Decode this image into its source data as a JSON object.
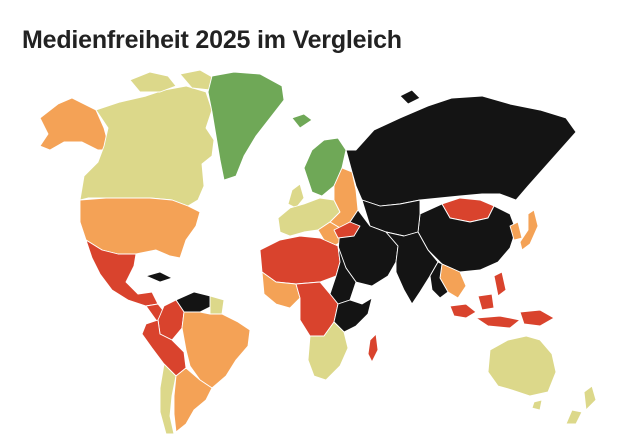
{
  "title": "Medienfreiheit 2025 im Vergleich",
  "colors": {
    "good": "#6fa857",
    "satisfactory": "#dcd88a",
    "problematic": "#f4a256",
    "difficult": "#d9432d",
    "very_serious": "#141414"
  },
  "regions": [
    {
      "name": "Kanada",
      "category": "satisfactory"
    },
    {
      "name": "Alaska (USA)",
      "category": "problematic"
    },
    {
      "name": "USA",
      "category": "problematic"
    },
    {
      "name": "Grönland",
      "category": "good"
    },
    {
      "name": "Mexiko",
      "category": "difficult"
    },
    {
      "name": "Mittelamerika",
      "category": "difficult"
    },
    {
      "name": "Kuba",
      "category": "very_serious"
    },
    {
      "name": "Venezuela",
      "category": "very_serious"
    },
    {
      "name": "Kolumbien",
      "category": "difficult"
    },
    {
      "name": "Peru",
      "category": "difficult"
    },
    {
      "name": "Brasilien",
      "category": "problematic"
    },
    {
      "name": "Argentinien",
      "category": "problematic"
    },
    {
      "name": "Skandinavien",
      "category": "good"
    },
    {
      "name": "Westeuropa",
      "category": "satisfactory"
    },
    {
      "name": "Osteuropa",
      "category": "problematic"
    },
    {
      "name": "Russland",
      "category": "very_serious"
    },
    {
      "name": "China",
      "category": "very_serious"
    },
    {
      "name": "Mongolei",
      "category": "difficult"
    },
    {
      "name": "Japan",
      "category": "problematic"
    },
    {
      "name": "Indien",
      "category": "very_serious"
    },
    {
      "name": "Nahost",
      "category": "very_serious"
    },
    {
      "name": "Nordafrika",
      "category": "difficult"
    },
    {
      "name": "Ostafrika",
      "category": "very_serious"
    },
    {
      "name": "Zentralafrika",
      "category": "difficult"
    },
    {
      "name": "Südliches Afrika",
      "category": "satisfactory"
    },
    {
      "name": "Madagaskar",
      "category": "difficult"
    },
    {
      "name": "Indonesien",
      "category": "difficult"
    },
    {
      "name": "Australien",
      "category": "satisfactory"
    },
    {
      "name": "Neuseeland",
      "category": "satisfactory"
    }
  ]
}
